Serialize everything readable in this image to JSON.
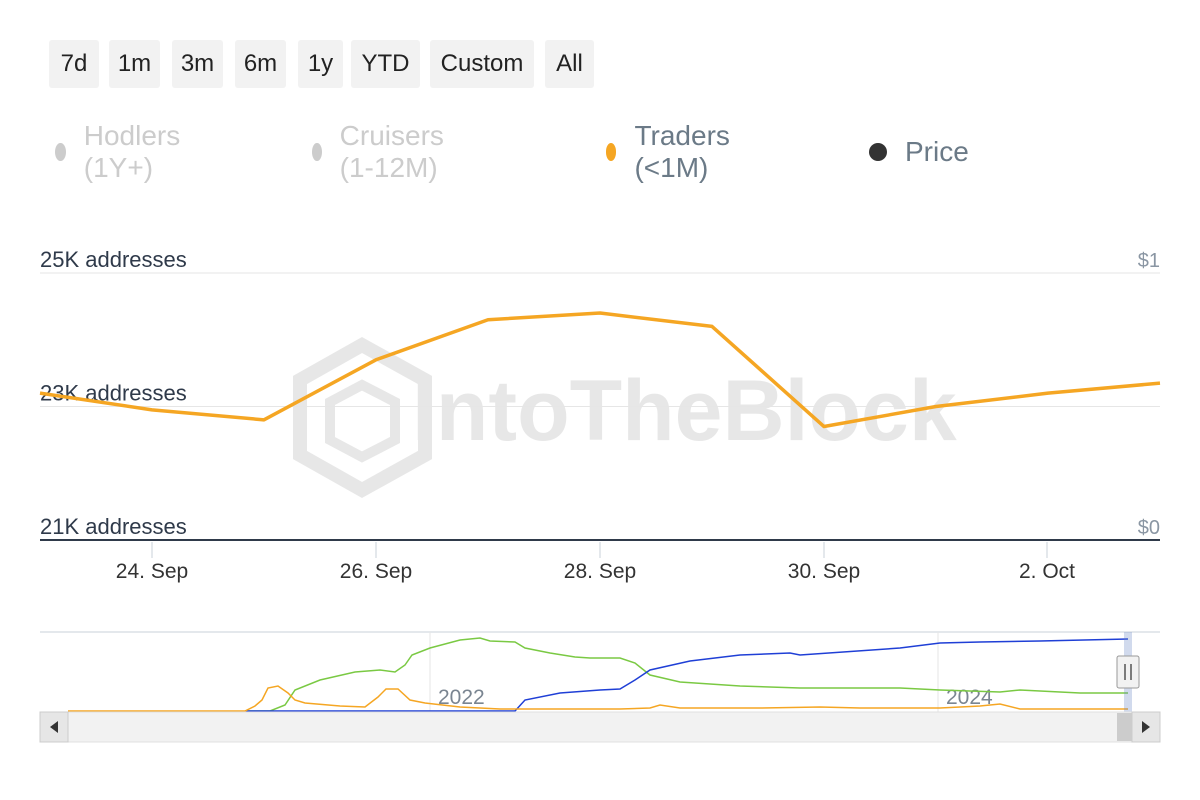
{
  "range_buttons": [
    {
      "label": "7d"
    },
    {
      "label": "1m"
    },
    {
      "label": "3m"
    },
    {
      "label": "6m"
    },
    {
      "label": "1y"
    },
    {
      "label": "YTD"
    },
    {
      "label": "Custom"
    },
    {
      "label": "All"
    }
  ],
  "legend": [
    {
      "label": "Hodlers (1Y+)",
      "color": "#cccccc",
      "active": false
    },
    {
      "label": "Cruisers (1-12M)",
      "color": "#cccccc",
      "active": false
    },
    {
      "label": "Traders (<1M)",
      "color": "#f5a623",
      "active": true
    },
    {
      "label": "Price",
      "color": "#333333",
      "active": true
    }
  ],
  "watermark": "IntoTheBlock",
  "chart_data": {
    "type": "line",
    "x": [
      "23 Sep",
      "24 Sep",
      "25 Sep",
      "26 Sep",
      "27 Sep",
      "28 Sep",
      "29 Sep",
      "30 Sep",
      "1 Oct",
      "2 Oct",
      "3 Oct"
    ],
    "series": [
      {
        "name": "Traders (<1M)",
        "color": "#f5a623",
        "values": [
          23200,
          22950,
          22800,
          23700,
          24300,
          24400,
          24200,
          22700,
          23000,
          23200,
          23350
        ]
      }
    ],
    "y_left": {
      "ticks": [
        "21K addresses",
        "23K addresses",
        "25K addresses"
      ],
      "range": [
        21000,
        25000
      ]
    },
    "y_right": {
      "ticks": [
        "$0",
        "$1"
      ]
    },
    "x_ticks": [
      "24. Sep",
      "26. Sep",
      "28. Sep",
      "30. Sep",
      "2. Oct"
    ],
    "navigator": {
      "year_labels": [
        "2022",
        "2024"
      ],
      "series_colors": [
        "#7ac943",
        "#1f3fd6",
        "#f5a623"
      ]
    }
  }
}
